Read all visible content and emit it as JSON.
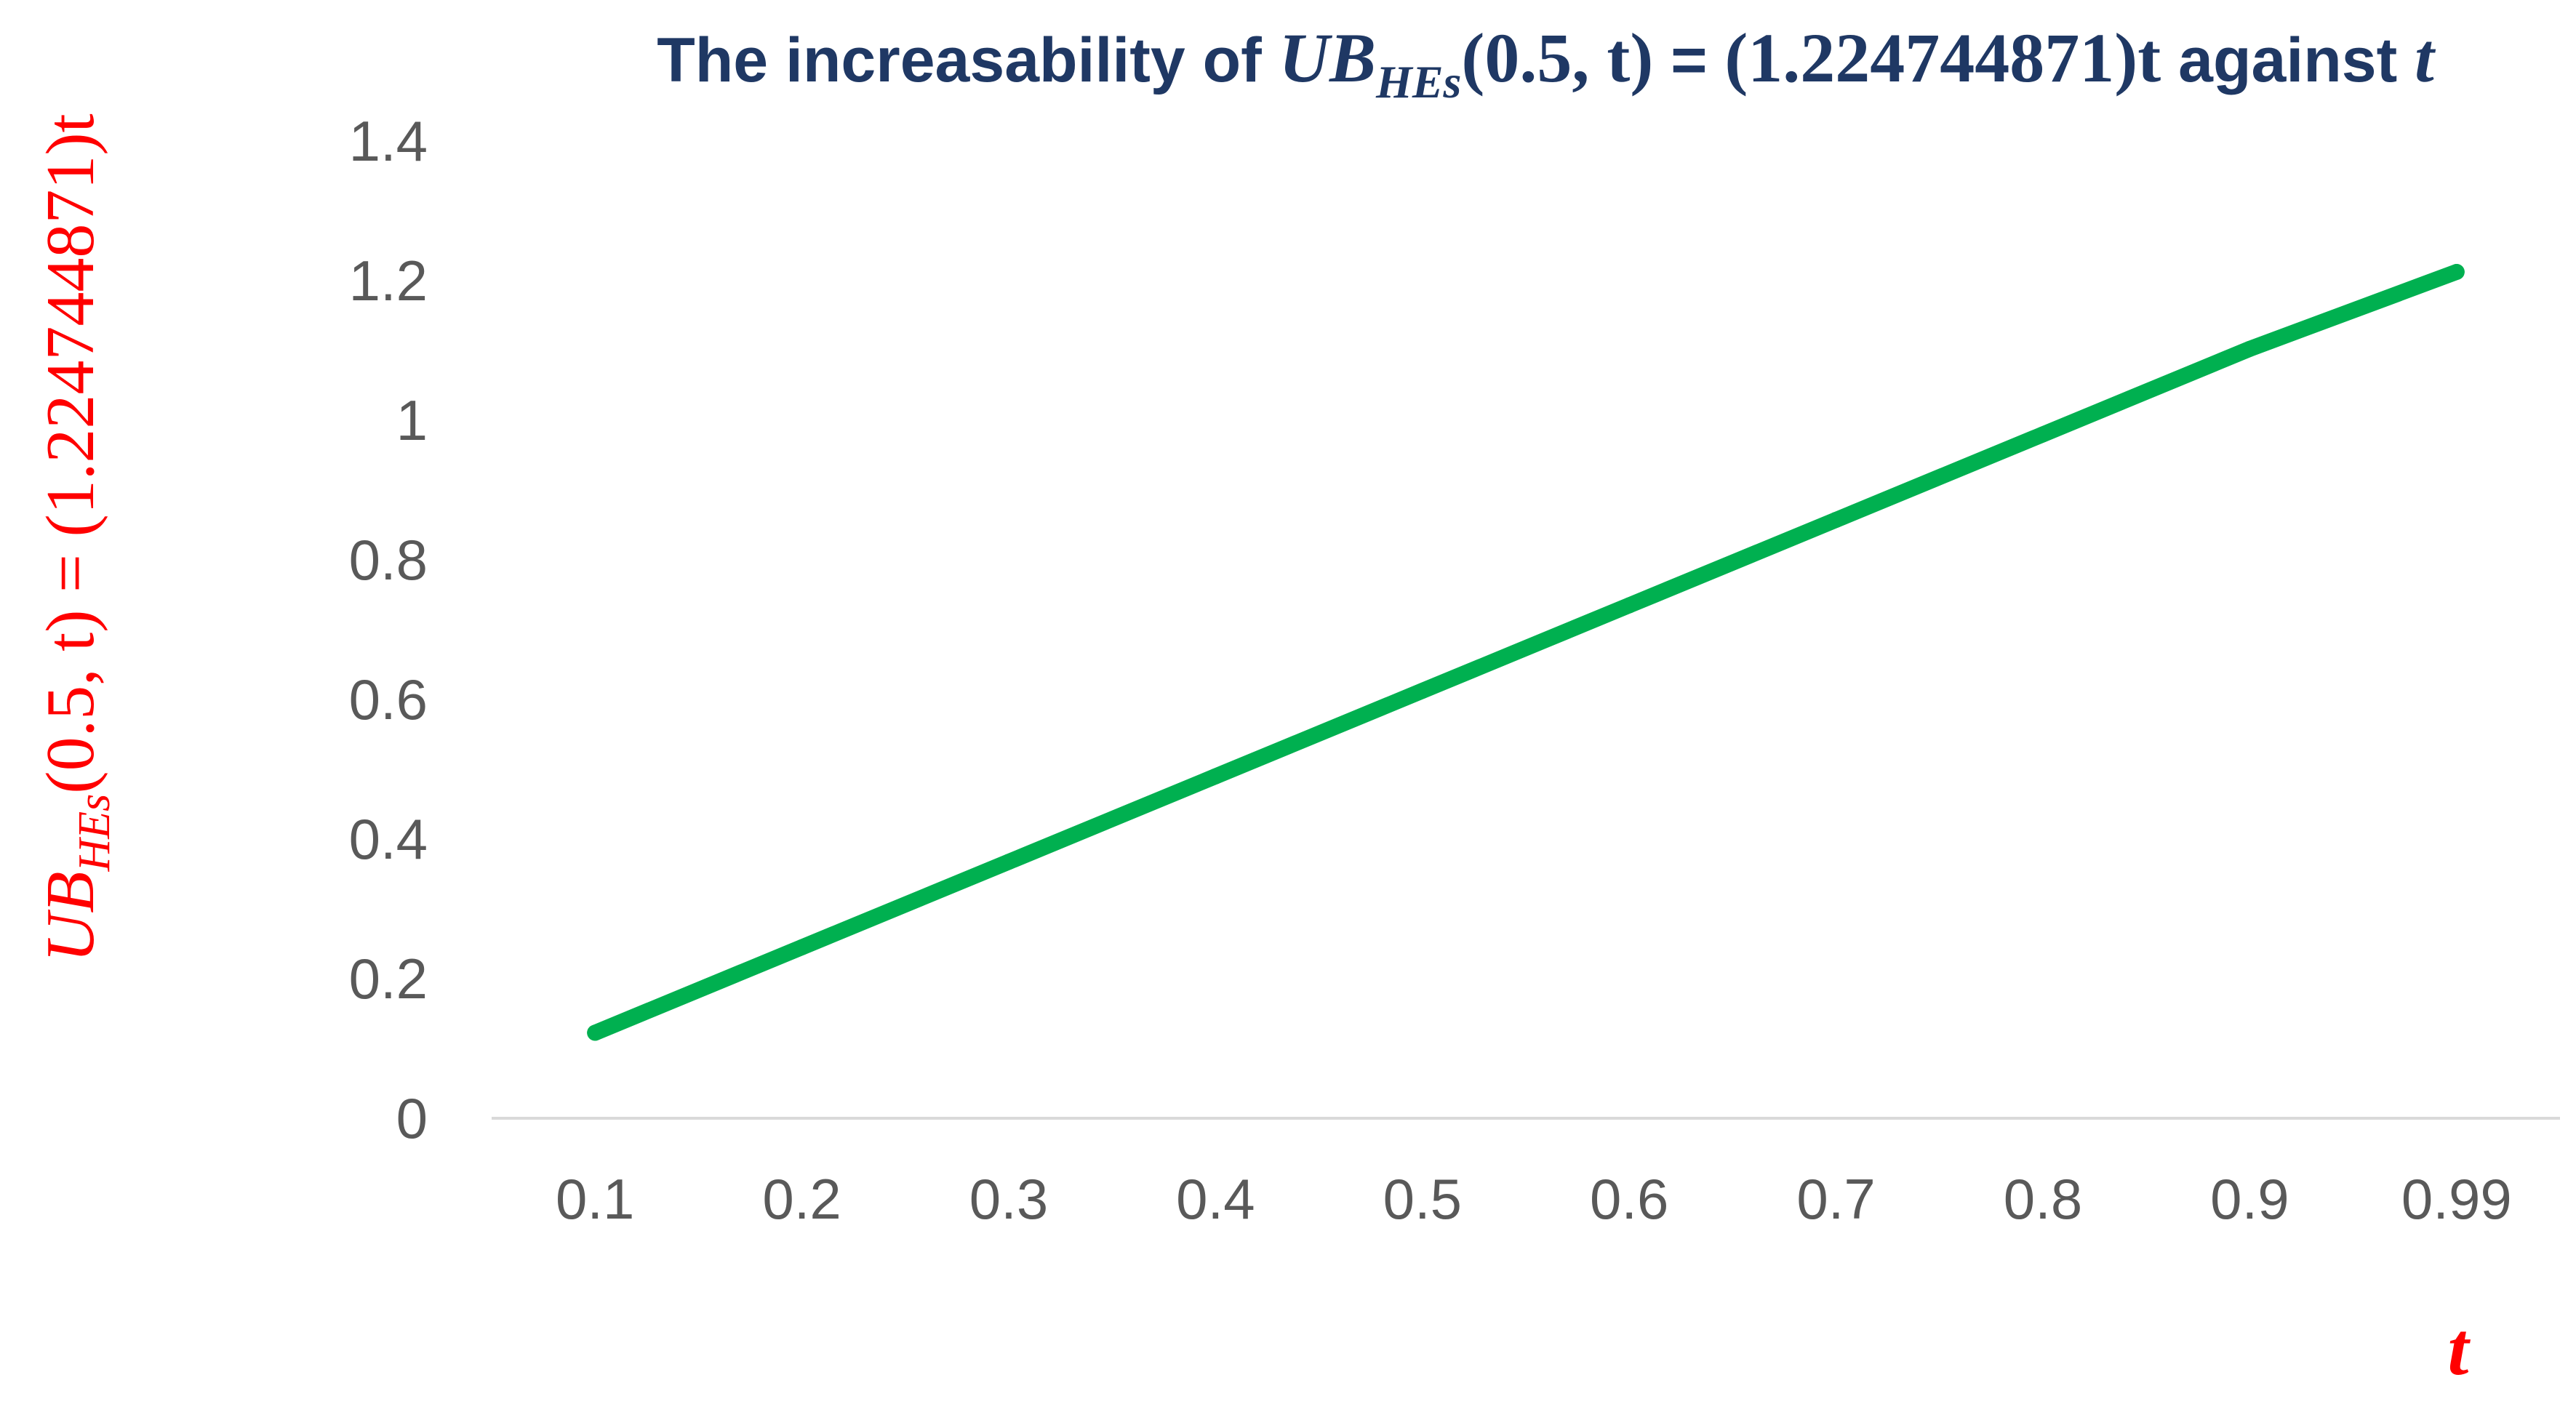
{
  "colors": {
    "title": "#1f3864",
    "ylabel": "#ff0000",
    "xlabel": "#ff0000",
    "series": "#00b050",
    "axis": "#d9d9d9",
    "ticks": "#595959"
  },
  "chart_data": {
    "type": "line",
    "title": {
      "prefix": "The increasability of ",
      "func": "UB",
      "sub": "HEs",
      "args": "(0.5, t)",
      "equals": " =  ",
      "expr": "(1.224744871)t",
      "against": " against ",
      "var": "t"
    },
    "ylabel": {
      "func": "UB",
      "sub": "HEs",
      "args": "(0.5, t)",
      "equals": " =  ",
      "expr": "(1.224744871)t"
    },
    "xlabel": "t",
    "categories": [
      "0.1",
      "0.2",
      "0.3",
      "0.4",
      "0.5",
      "0.6",
      "0.7",
      "0.8",
      "0.9",
      "0.99"
    ],
    "y_ticks": [
      "0",
      "0.2",
      "0.4",
      "0.6",
      "0.8",
      "1",
      "1.2",
      "1.4"
    ],
    "ylim": [
      0,
      1.4
    ],
    "grid": false,
    "legend": "none",
    "series": [
      {
        "values": [
          0.1224744871,
          0.2449489742,
          0.3674234613,
          0.4898979484,
          0.6123724355,
          0.7348469226,
          0.8573214097,
          0.9797958968,
          1.1022703839,
          1.2124974223
        ]
      }
    ]
  }
}
